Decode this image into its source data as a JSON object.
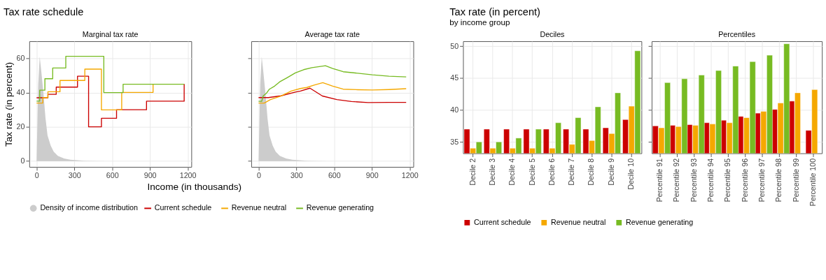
{
  "chart_data": [
    {
      "type": "step",
      "title": "Marginal tax rate",
      "annotations": [
        "Tax rate schedule"
      ],
      "xlabel": "Income (in thousands)",
      "ylabel": "Tax rate (in percent)",
      "xlim": [
        -58,
        1229
      ],
      "ylim": [
        -3.4,
        70
      ],
      "xticks": [
        0,
        300,
        600,
        900,
        1200
      ],
      "yticks": [
        0,
        20,
        40,
        60
      ],
      "grid": true,
      "legend": "bottom",
      "series": [
        {
          "name": "Density of income distribution",
          "type": "area",
          "color": "#cccccc",
          "x": [
            0,
            13,
            25,
            38,
            54,
            71,
            87,
            112,
            136,
            169,
            219,
            268,
            383,
            547,
            712,
            1172
          ],
          "values": [
            0,
            45,
            61,
            52,
            40,
            25,
            15,
            9,
            5.5,
            3,
            1.5,
            0.8,
            0.2,
            0,
            0,
            0
          ]
        },
        {
          "name": "Current schedule",
          "color": "#cc0000",
          "x": [
            0,
            90,
            156,
            325,
            413,
            515,
            635,
            873,
            1172
          ],
          "values": [
            37,
            39,
            43.2,
            49.6,
            20,
            25,
            30,
            35,
            45
          ]
        },
        {
          "name": "Revenue neutral",
          "color": "#f5a800",
          "x": [
            0,
            49,
            90,
            186,
            383,
            515,
            676,
            925
          ],
          "values": [
            33.9,
            37.1,
            40.5,
            47.1,
            53.7,
            29.9,
            40.1,
            45
          ]
        },
        {
          "name": "Revenue generating",
          "color": "#77bb22",
          "x": [
            0,
            25,
            66,
            128,
            232,
            534,
            687,
            1172
          ],
          "values": [
            35,
            41.4,
            48.1,
            54.4,
            61.2,
            40,
            44.9,
            44.9
          ]
        }
      ]
    },
    {
      "type": "line",
      "title": "Average tax rate",
      "xlim": [
        -58,
        1229
      ],
      "ylim": [
        -3.4,
        70
      ],
      "xticks": [
        0,
        300,
        600,
        900,
        1200
      ],
      "yticks": [
        0,
        20,
        40,
        60
      ],
      "grid": true,
      "legend": "bottom",
      "tick_labels": "x",
      "series": [
        {
          "name": "Density of income distribution",
          "type": "area",
          "color": "#cccccc",
          "x": [
            0,
            13,
            25,
            38,
            54,
            71,
            87,
            112,
            136,
            169,
            219,
            268,
            383,
            547,
            712,
            1172
          ],
          "values": [
            0,
            45,
            61,
            52,
            40,
            25,
            15,
            9,
            5.5,
            3,
            1.5,
            0.8,
            0.2,
            0,
            0,
            0
          ]
        },
        {
          "name": "Current schedule",
          "color": "#cc0000",
          "x": [
            0,
            78,
            177,
            292,
            333,
            408,
            507,
            622,
            738,
            870,
            1035,
            1172
          ],
          "values": [
            37.1,
            37.1,
            38.1,
            40.3,
            40.9,
            42.6,
            38,
            35.9,
            34.8,
            34.2,
            34.3,
            34.3
          ]
        },
        {
          "name": "Revenue neutral",
          "color": "#f5a800",
          "x": [
            0,
            45,
            94,
            177,
            259,
            333,
            383,
            441,
            510,
            589,
            672,
            788,
            903,
            1035,
            1172
          ],
          "values": [
            33.9,
            33.9,
            35.9,
            38,
            40.9,
            42.4,
            43,
            44.4,
            45.8,
            43.8,
            42,
            41.7,
            41.5,
            41.8,
            42.3
          ]
        },
        {
          "name": "Revenue generating",
          "color": "#77bb22",
          "x": [
            0,
            25,
            36,
            61,
            86,
            127,
            168,
            226,
            292,
            358,
            424,
            531,
            589,
            672,
            788,
            903,
            1035,
            1172
          ],
          "values": [
            34.9,
            34.9,
            38,
            39.5,
            42,
            43.8,
            46.3,
            48.7,
            51.5,
            53.4,
            54.6,
            55.7,
            54.1,
            52.2,
            51.3,
            50.4,
            49.6,
            49.2
          ]
        }
      ]
    },
    {
      "type": "bar",
      "title": "Deciles",
      "annotations": [
        "Tax rate (in percent)",
        "by income group"
      ],
      "categories": [
        "Decile 2",
        "Decile 3",
        "Decile 4",
        "Decile 5",
        "Decile 6",
        "Decile 7",
        "Decile 8",
        "Decile 9",
        "Decile 10"
      ],
      "ylim": [
        33.2,
        50.8
      ],
      "yticks": [
        35,
        40,
        45,
        50
      ],
      "grid": true,
      "legend": "bottom",
      "series": [
        {
          "name": "Current schedule",
          "color": "#cc0000",
          "values": [
            37,
            37,
            37,
            37,
            37,
            37,
            37,
            37.2,
            38.5
          ]
        },
        {
          "name": "Revenue neutral",
          "color": "#f5a800",
          "values": [
            34,
            34,
            34,
            34,
            34,
            34.6,
            35.2,
            36.3,
            40.6
          ]
        },
        {
          "name": "Revenue generating",
          "color": "#77bb22",
          "values": [
            35,
            35,
            35.6,
            37,
            38,
            38.8,
            40.5,
            42.7,
            49.3
          ]
        }
      ]
    },
    {
      "type": "bar",
      "title": "Percentiles",
      "categories": [
        "Percentile 91",
        "Percentile 92",
        "Percentile 93",
        "Percentile 94",
        "Percentile 95",
        "Percentile 96",
        "Percentile 97",
        "Percentile 98",
        "Percentile 99",
        "Percentile 100"
      ],
      "ylim": [
        33.2,
        50.8
      ],
      "yticks": [
        35,
        40,
        45,
        50
      ],
      "grid": true,
      "legend": "bottom",
      "tick_labels": "x",
      "series": [
        {
          "name": "Current schedule",
          "color": "#cc0000",
          "values": [
            37.5,
            37.6,
            37.7,
            38,
            38.4,
            39,
            39.5,
            40.1,
            41.4,
            36.8
          ]
        },
        {
          "name": "Revenue neutral",
          "color": "#f5a800",
          "values": [
            37.2,
            37.4,
            37.6,
            37.8,
            38,
            38.8,
            39.8,
            41.1,
            42.7,
            43.2
          ]
        },
        {
          "name": "Revenue generating",
          "color": "#77bb22",
          "values": [
            44.3,
            44.9,
            45.5,
            46.2,
            46.9,
            47.6,
            48.6,
            50.4,
            null,
            null
          ]
        }
      ]
    }
  ]
}
